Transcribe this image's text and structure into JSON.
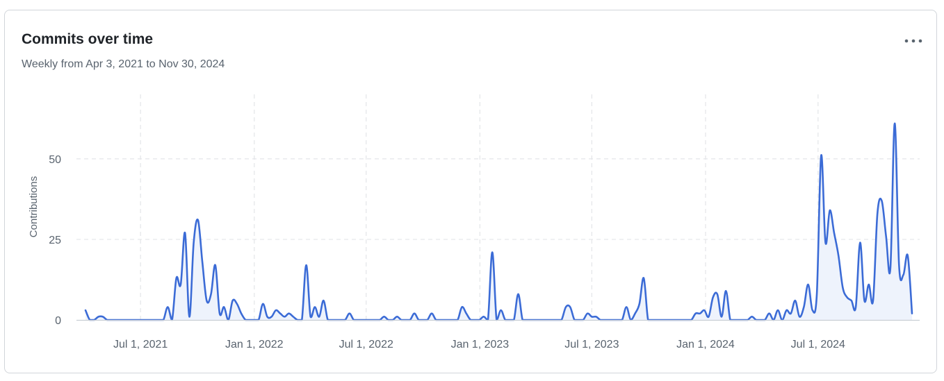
{
  "card": {
    "title": "Commits over time",
    "subtitle": "Weekly from Apr 3, 2021 to Nov 30, 2024",
    "menu_icon": "kebab-horizontal-icon"
  },
  "colors": {
    "line": "#3b6bd6",
    "fill": "#eef3fc",
    "grid": "#e3e5e8",
    "axis": "#c9ced4",
    "text": "#59636e",
    "title": "#1f2328"
  },
  "chart_data": {
    "type": "area",
    "title": "Commits over time",
    "subtitle": "Weekly from Apr 3, 2021 to Nov 30, 2024",
    "xlabel": "",
    "ylabel": "Contributions",
    "ylim": [
      0,
      70
    ],
    "xlim": [
      "2021-04-03",
      "2024-11-30"
    ],
    "y_ticks": [
      0,
      25,
      50
    ],
    "x_ticks": [
      {
        "date": "2021-07-01",
        "label": "Jul 1, 2021"
      },
      {
        "date": "2022-01-01",
        "label": "Jan 1, 2022"
      },
      {
        "date": "2022-07-01",
        "label": "Jul 1, 2022"
      },
      {
        "date": "2023-01-01",
        "label": "Jan 1, 2023"
      },
      {
        "date": "2023-07-01",
        "label": "Jul 1, 2023"
      },
      {
        "date": "2024-01-01",
        "label": "Jan 1, 2024"
      },
      {
        "date": "2024-07-01",
        "label": "Jul 1, 2024"
      }
    ],
    "grid": true,
    "legend": "none",
    "series": [
      {
        "points": [
          [
            "2021-04-03",
            3
          ],
          [
            "2021-04-10",
            0
          ],
          [
            "2021-04-17",
            0
          ],
          [
            "2021-04-24",
            1
          ],
          [
            "2021-05-01",
            1
          ],
          [
            "2021-05-08",
            0
          ],
          [
            "2021-05-15",
            0
          ],
          [
            "2021-05-22",
            0
          ],
          [
            "2021-05-29",
            0
          ],
          [
            "2021-06-05",
            0
          ],
          [
            "2021-06-12",
            0
          ],
          [
            "2021-06-19",
            0
          ],
          [
            "2021-06-26",
            0
          ],
          [
            "2021-07-03",
            0
          ],
          [
            "2021-07-10",
            0
          ],
          [
            "2021-07-17",
            0
          ],
          [
            "2021-07-24",
            0
          ],
          [
            "2021-07-31",
            0
          ],
          [
            "2021-08-07",
            0
          ],
          [
            "2021-08-14",
            4
          ],
          [
            "2021-08-21",
            0
          ],
          [
            "2021-08-28",
            13
          ],
          [
            "2021-09-04",
            11
          ],
          [
            "2021-09-11",
            27
          ],
          [
            "2021-09-18",
            1
          ],
          [
            "2021-09-25",
            24
          ],
          [
            "2021-10-02",
            31
          ],
          [
            "2021-10-09",
            18
          ],
          [
            "2021-10-16",
            6
          ],
          [
            "2021-10-23",
            8
          ],
          [
            "2021-10-30",
            17
          ],
          [
            "2021-11-06",
            2
          ],
          [
            "2021-11-13",
            4
          ],
          [
            "2021-11-20",
            0
          ],
          [
            "2021-11-27",
            6
          ],
          [
            "2021-12-04",
            5
          ],
          [
            "2021-12-11",
            2
          ],
          [
            "2021-12-18",
            0
          ],
          [
            "2021-12-25",
            0
          ],
          [
            "2022-01-01",
            0
          ],
          [
            "2022-01-08",
            0
          ],
          [
            "2022-01-15",
            5
          ],
          [
            "2022-01-22",
            1
          ],
          [
            "2022-01-29",
            1
          ],
          [
            "2022-02-05",
            3
          ],
          [
            "2022-02-12",
            2
          ],
          [
            "2022-02-19",
            1
          ],
          [
            "2022-02-26",
            2
          ],
          [
            "2022-03-05",
            1
          ],
          [
            "2022-03-12",
            0
          ],
          [
            "2022-03-19",
            0
          ],
          [
            "2022-03-26",
            17
          ],
          [
            "2022-04-02",
            1
          ],
          [
            "2022-04-09",
            4
          ],
          [
            "2022-04-16",
            1
          ],
          [
            "2022-04-23",
            6
          ],
          [
            "2022-04-30",
            0
          ],
          [
            "2022-05-07",
            0
          ],
          [
            "2022-05-14",
            0
          ],
          [
            "2022-05-21",
            0
          ],
          [
            "2022-05-28",
            0
          ],
          [
            "2022-06-04",
            2
          ],
          [
            "2022-06-11",
            0
          ],
          [
            "2022-06-18",
            0
          ],
          [
            "2022-06-25",
            0
          ],
          [
            "2022-07-02",
            0
          ],
          [
            "2022-07-09",
            0
          ],
          [
            "2022-07-16",
            0
          ],
          [
            "2022-07-23",
            0
          ],
          [
            "2022-07-30",
            1
          ],
          [
            "2022-08-06",
            0
          ],
          [
            "2022-08-13",
            0
          ],
          [
            "2022-08-20",
            1
          ],
          [
            "2022-08-27",
            0
          ],
          [
            "2022-09-03",
            0
          ],
          [
            "2022-09-10",
            0
          ],
          [
            "2022-09-17",
            2
          ],
          [
            "2022-09-24",
            0
          ],
          [
            "2022-10-01",
            0
          ],
          [
            "2022-10-08",
            0
          ],
          [
            "2022-10-15",
            2
          ],
          [
            "2022-10-22",
            0
          ],
          [
            "2022-10-29",
            0
          ],
          [
            "2022-11-05",
            0
          ],
          [
            "2022-11-12",
            0
          ],
          [
            "2022-11-19",
            0
          ],
          [
            "2022-11-26",
            0
          ],
          [
            "2022-12-03",
            4
          ],
          [
            "2022-12-10",
            2
          ],
          [
            "2022-12-17",
            0
          ],
          [
            "2022-12-24",
            0
          ],
          [
            "2022-12-31",
            0
          ],
          [
            "2023-01-07",
            1
          ],
          [
            "2023-01-14",
            0
          ],
          [
            "2023-01-21",
            21
          ],
          [
            "2023-01-28",
            0
          ],
          [
            "2023-02-04",
            3
          ],
          [
            "2023-02-11",
            0
          ],
          [
            "2023-02-18",
            0
          ],
          [
            "2023-02-25",
            0
          ],
          [
            "2023-03-04",
            8
          ],
          [
            "2023-03-11",
            0
          ],
          [
            "2023-03-18",
            0
          ],
          [
            "2023-03-25",
            0
          ],
          [
            "2023-04-01",
            0
          ],
          [
            "2023-04-08",
            0
          ],
          [
            "2023-04-15",
            0
          ],
          [
            "2023-04-22",
            0
          ],
          [
            "2023-04-29",
            0
          ],
          [
            "2023-05-06",
            0
          ],
          [
            "2023-05-13",
            0
          ],
          [
            "2023-05-20",
            4
          ],
          [
            "2023-05-27",
            4
          ],
          [
            "2023-06-03",
            0
          ],
          [
            "2023-06-10",
            0
          ],
          [
            "2023-06-17",
            0
          ],
          [
            "2023-06-24",
            2
          ],
          [
            "2023-07-01",
            1
          ],
          [
            "2023-07-08",
            1
          ],
          [
            "2023-07-15",
            0
          ],
          [
            "2023-07-22",
            0
          ],
          [
            "2023-07-29",
            0
          ],
          [
            "2023-08-05",
            0
          ],
          [
            "2023-08-12",
            0
          ],
          [
            "2023-08-19",
            0
          ],
          [
            "2023-08-26",
            4
          ],
          [
            "2023-09-02",
            0
          ],
          [
            "2023-09-09",
            2
          ],
          [
            "2023-09-16",
            5
          ],
          [
            "2023-09-23",
            13
          ],
          [
            "2023-09-30",
            0
          ],
          [
            "2023-10-07",
            0
          ],
          [
            "2023-10-14",
            0
          ],
          [
            "2023-10-21",
            0
          ],
          [
            "2023-10-28",
            0
          ],
          [
            "2023-11-04",
            0
          ],
          [
            "2023-11-11",
            0
          ],
          [
            "2023-11-18",
            0
          ],
          [
            "2023-11-25",
            0
          ],
          [
            "2023-12-02",
            0
          ],
          [
            "2023-12-09",
            0
          ],
          [
            "2023-12-16",
            2
          ],
          [
            "2023-12-23",
            2
          ],
          [
            "2023-12-30",
            3
          ],
          [
            "2024-01-06",
            1
          ],
          [
            "2024-01-13",
            7
          ],
          [
            "2024-01-20",
            8
          ],
          [
            "2024-01-27",
            1
          ],
          [
            "2024-02-03",
            9
          ],
          [
            "2024-02-10",
            0
          ],
          [
            "2024-02-17",
            0
          ],
          [
            "2024-02-24",
            0
          ],
          [
            "2024-03-02",
            0
          ],
          [
            "2024-03-09",
            0
          ],
          [
            "2024-03-16",
            1
          ],
          [
            "2024-03-23",
            0
          ],
          [
            "2024-03-30",
            0
          ],
          [
            "2024-04-06",
            0
          ],
          [
            "2024-04-13",
            2
          ],
          [
            "2024-04-20",
            0
          ],
          [
            "2024-04-27",
            3
          ],
          [
            "2024-05-04",
            0
          ],
          [
            "2024-05-11",
            3
          ],
          [
            "2024-05-18",
            2
          ],
          [
            "2024-05-25",
            6
          ],
          [
            "2024-06-01",
            1
          ],
          [
            "2024-06-08",
            4
          ],
          [
            "2024-06-15",
            11
          ],
          [
            "2024-06-22",
            3
          ],
          [
            "2024-06-29",
            8
          ],
          [
            "2024-07-06",
            51
          ],
          [
            "2024-07-13",
            24
          ],
          [
            "2024-07-20",
            34
          ],
          [
            "2024-07-27",
            27
          ],
          [
            "2024-08-03",
            20
          ],
          [
            "2024-08-10",
            10
          ],
          [
            "2024-08-17",
            7
          ],
          [
            "2024-08-24",
            6
          ],
          [
            "2024-08-31",
            4
          ],
          [
            "2024-09-07",
            24
          ],
          [
            "2024-09-14",
            6
          ],
          [
            "2024-09-21",
            11
          ],
          [
            "2024-09-28",
            6
          ],
          [
            "2024-10-05",
            33
          ],
          [
            "2024-10-12",
            37
          ],
          [
            "2024-10-19",
            26
          ],
          [
            "2024-10-26",
            16
          ],
          [
            "2024-11-02",
            61
          ],
          [
            "2024-11-09",
            17
          ],
          [
            "2024-11-16",
            14
          ],
          [
            "2024-11-23",
            20
          ],
          [
            "2024-11-30",
            2
          ]
        ]
      }
    ]
  }
}
